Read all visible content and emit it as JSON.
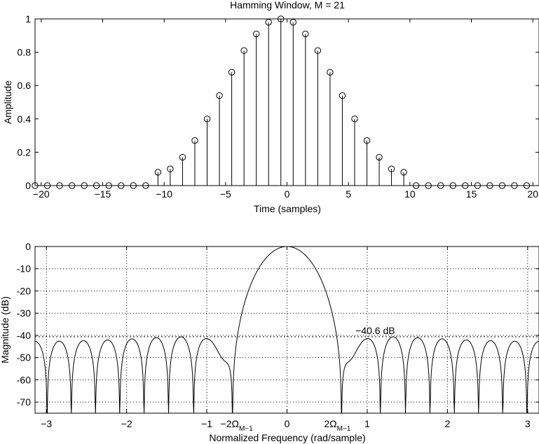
{
  "chart_data": [
    {
      "type": "stem",
      "title": "Hamming Window, M = 21",
      "xlabel": "Time (samples)",
      "ylabel": "Amplitude",
      "xlim": [
        -20.5,
        20.5
      ],
      "ylim": [
        0,
        1
      ],
      "xticks": [
        -20,
        -15,
        -10,
        -5,
        0,
        5,
        10,
        15,
        20
      ],
      "xtick_labels": [
        "−20",
        "−15",
        "−10",
        "−5",
        "0",
        "5",
        "10",
        "15",
        "20"
      ],
      "yticks": [
        0,
        0.2,
        0.4,
        0.6,
        0.8,
        1
      ],
      "ytick_labels": [
        "0",
        "0.2",
        "0.4",
        "0.6",
        "0.8",
        "1"
      ],
      "grid": false,
      "x": [
        -20.5,
        -19.5,
        -18.5,
        -17.5,
        -16.5,
        -15.5,
        -14.5,
        -13.5,
        -12.5,
        -11.5,
        -10.5,
        -9.5,
        -8.5,
        -7.5,
        -6.5,
        -5.5,
        -4.5,
        -3.5,
        -2.5,
        -1.5,
        -0.5,
        0.5,
        1.5,
        2.5,
        3.5,
        4.5,
        5.5,
        6.5,
        7.5,
        8.5,
        9.5,
        10.5,
        11.5,
        12.5,
        13.5,
        14.5,
        15.5,
        16.5,
        17.5,
        18.5,
        19.5
      ],
      "y": [
        0,
        0,
        0,
        0,
        0,
        0,
        0,
        0,
        0,
        0,
        0.08,
        0.1,
        0.17,
        0.27,
        0.4,
        0.54,
        0.68,
        0.81,
        0.91,
        0.98,
        1.0,
        0.98,
        0.91,
        0.81,
        0.68,
        0.54,
        0.4,
        0.27,
        0.17,
        0.1,
        0.08,
        0,
        0,
        0,
        0,
        0,
        0,
        0,
        0,
        0,
        0
      ]
    },
    {
      "type": "line",
      "xlabel": "Normalized Frequency (rad/sample)",
      "ylabel": "Magnitude (dB)",
      "xlim": [
        -3.14159,
        3.14159
      ],
      "ylim": [
        -75,
        0
      ],
      "xticks": [
        -3,
        -2,
        -1,
        0,
        1,
        2,
        3
      ],
      "xtick_labels": [
        "−3",
        "−2",
        "−1",
        "0",
        "1",
        "2",
        "3"
      ],
      "yticks": [
        0,
        -10,
        -20,
        -30,
        -40,
        -50,
        -60,
        -70
      ],
      "ytick_labels": [
        "0",
        "-10",
        "-20",
        "-30",
        "-40",
        "-50",
        "-60",
        "-70"
      ],
      "grid": true,
      "hline": -40.6,
      "annotation": {
        "text": "−40.6 dB",
        "x": 1.1,
        "y": -40.6
      },
      "marker_labels": [
        {
          "base": "−2Ω",
          "sub": "M−1",
          "x": -0.628
        },
        {
          "base": "2Ω",
          "sub": "M−1",
          "x": 0.628
        }
      ],
      "series": [
        {
          "window_length": 21,
          "nulls_x": [
            -3.0,
            -2.4,
            -1.77,
            -1.17,
            -0.63,
            0.63,
            1.17,
            1.77,
            2.4,
            3.0
          ],
          "sidelobe_peaks_db": [
            -41,
            -42,
            -42,
            -42,
            -42,
            -42,
            -42,
            -42,
            -42,
            -41
          ]
        }
      ]
    }
  ]
}
